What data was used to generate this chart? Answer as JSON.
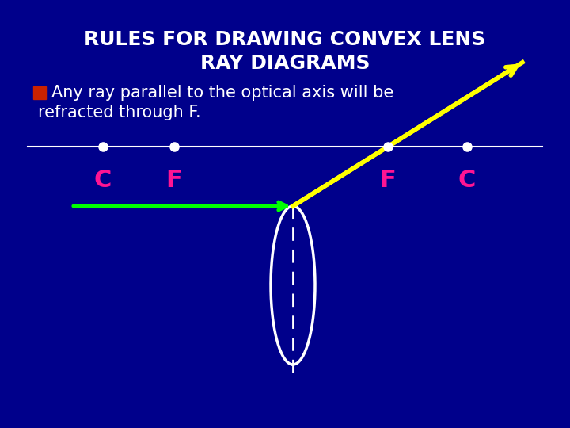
{
  "bg_color": "#00008B",
  "title_line1": "RULES FOR DRAWING CONVEX LENS",
  "title_line2": "RAY DIAGRAMS",
  "title_color": "#FFFFFF",
  "title_fontsize": 18,
  "subtitle_text1": "Any ray parallel to the optical axis will be",
  "subtitle_text2": "refracted through F.",
  "subtitle_color": "#FFFFFF",
  "subtitle_fontsize": 15,
  "bullet_color": "#CC2200",
  "optical_axis_color": "#FFFFFF",
  "lens_color": "#FFFFFF",
  "dashed_line_color": "#FFFFFF",
  "green_ray_color": "#00FF00",
  "yellow_ray_color": "#FFFF00",
  "point_color": "#FFFFFF",
  "label_color": "#FF1493",
  "label_fontsize": 22
}
